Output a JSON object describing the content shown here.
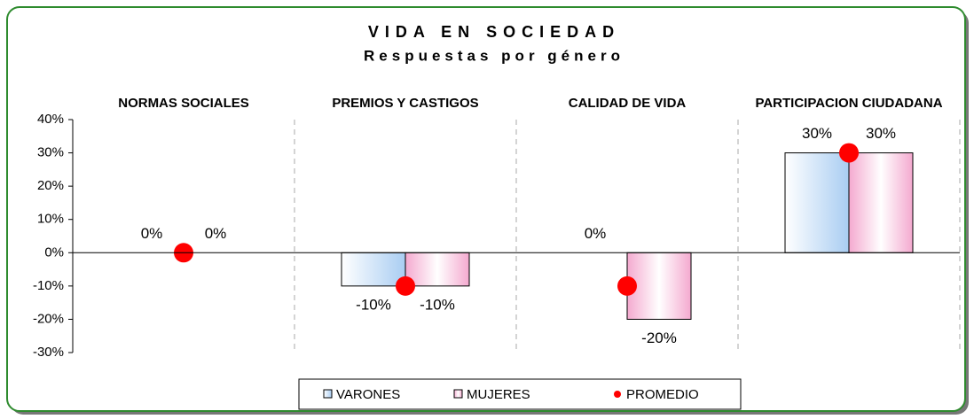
{
  "chart_data": {
    "type": "bar",
    "title": "VIDA EN SOCIEDAD",
    "subtitle": "Respuestas por género",
    "categories": [
      "NORMAS SOCIALES",
      "PREMIOS Y CASTIGOS",
      "CALIDAD DE VIDA",
      "PARTICIPACION CIUDADANA"
    ],
    "series": [
      {
        "name": "VARONES",
        "color": "#a9cdf2",
        "values": [
          0,
          -10,
          0,
          30
        ],
        "value_labels": [
          "0%",
          "-10%",
          "0%",
          "30%"
        ]
      },
      {
        "name": "MUJERES",
        "color": "#f4a9cf",
        "values": [
          0,
          -10,
          -20,
          30
        ],
        "value_labels": [
          "0%",
          "-10%",
          "-20%",
          "30%"
        ]
      },
      {
        "name": "PROMEDIO",
        "color": "#ff0000",
        "type": "scatter",
        "values": [
          0,
          -10,
          -10,
          30
        ]
      }
    ],
    "ylim": [
      -30,
      40
    ],
    "yticks": [
      {
        "value": -30,
        "label": "-30%"
      },
      {
        "value": -20,
        "label": "-20%"
      },
      {
        "value": -10,
        "label": "-10%"
      },
      {
        "value": 0,
        "label": "0%"
      },
      {
        "value": 10,
        "label": "10%"
      },
      {
        "value": 20,
        "label": "20%"
      },
      {
        "value": 30,
        "label": "30%"
      },
      {
        "value": 40,
        "label": "40%"
      }
    ],
    "legend": "bottom"
  }
}
